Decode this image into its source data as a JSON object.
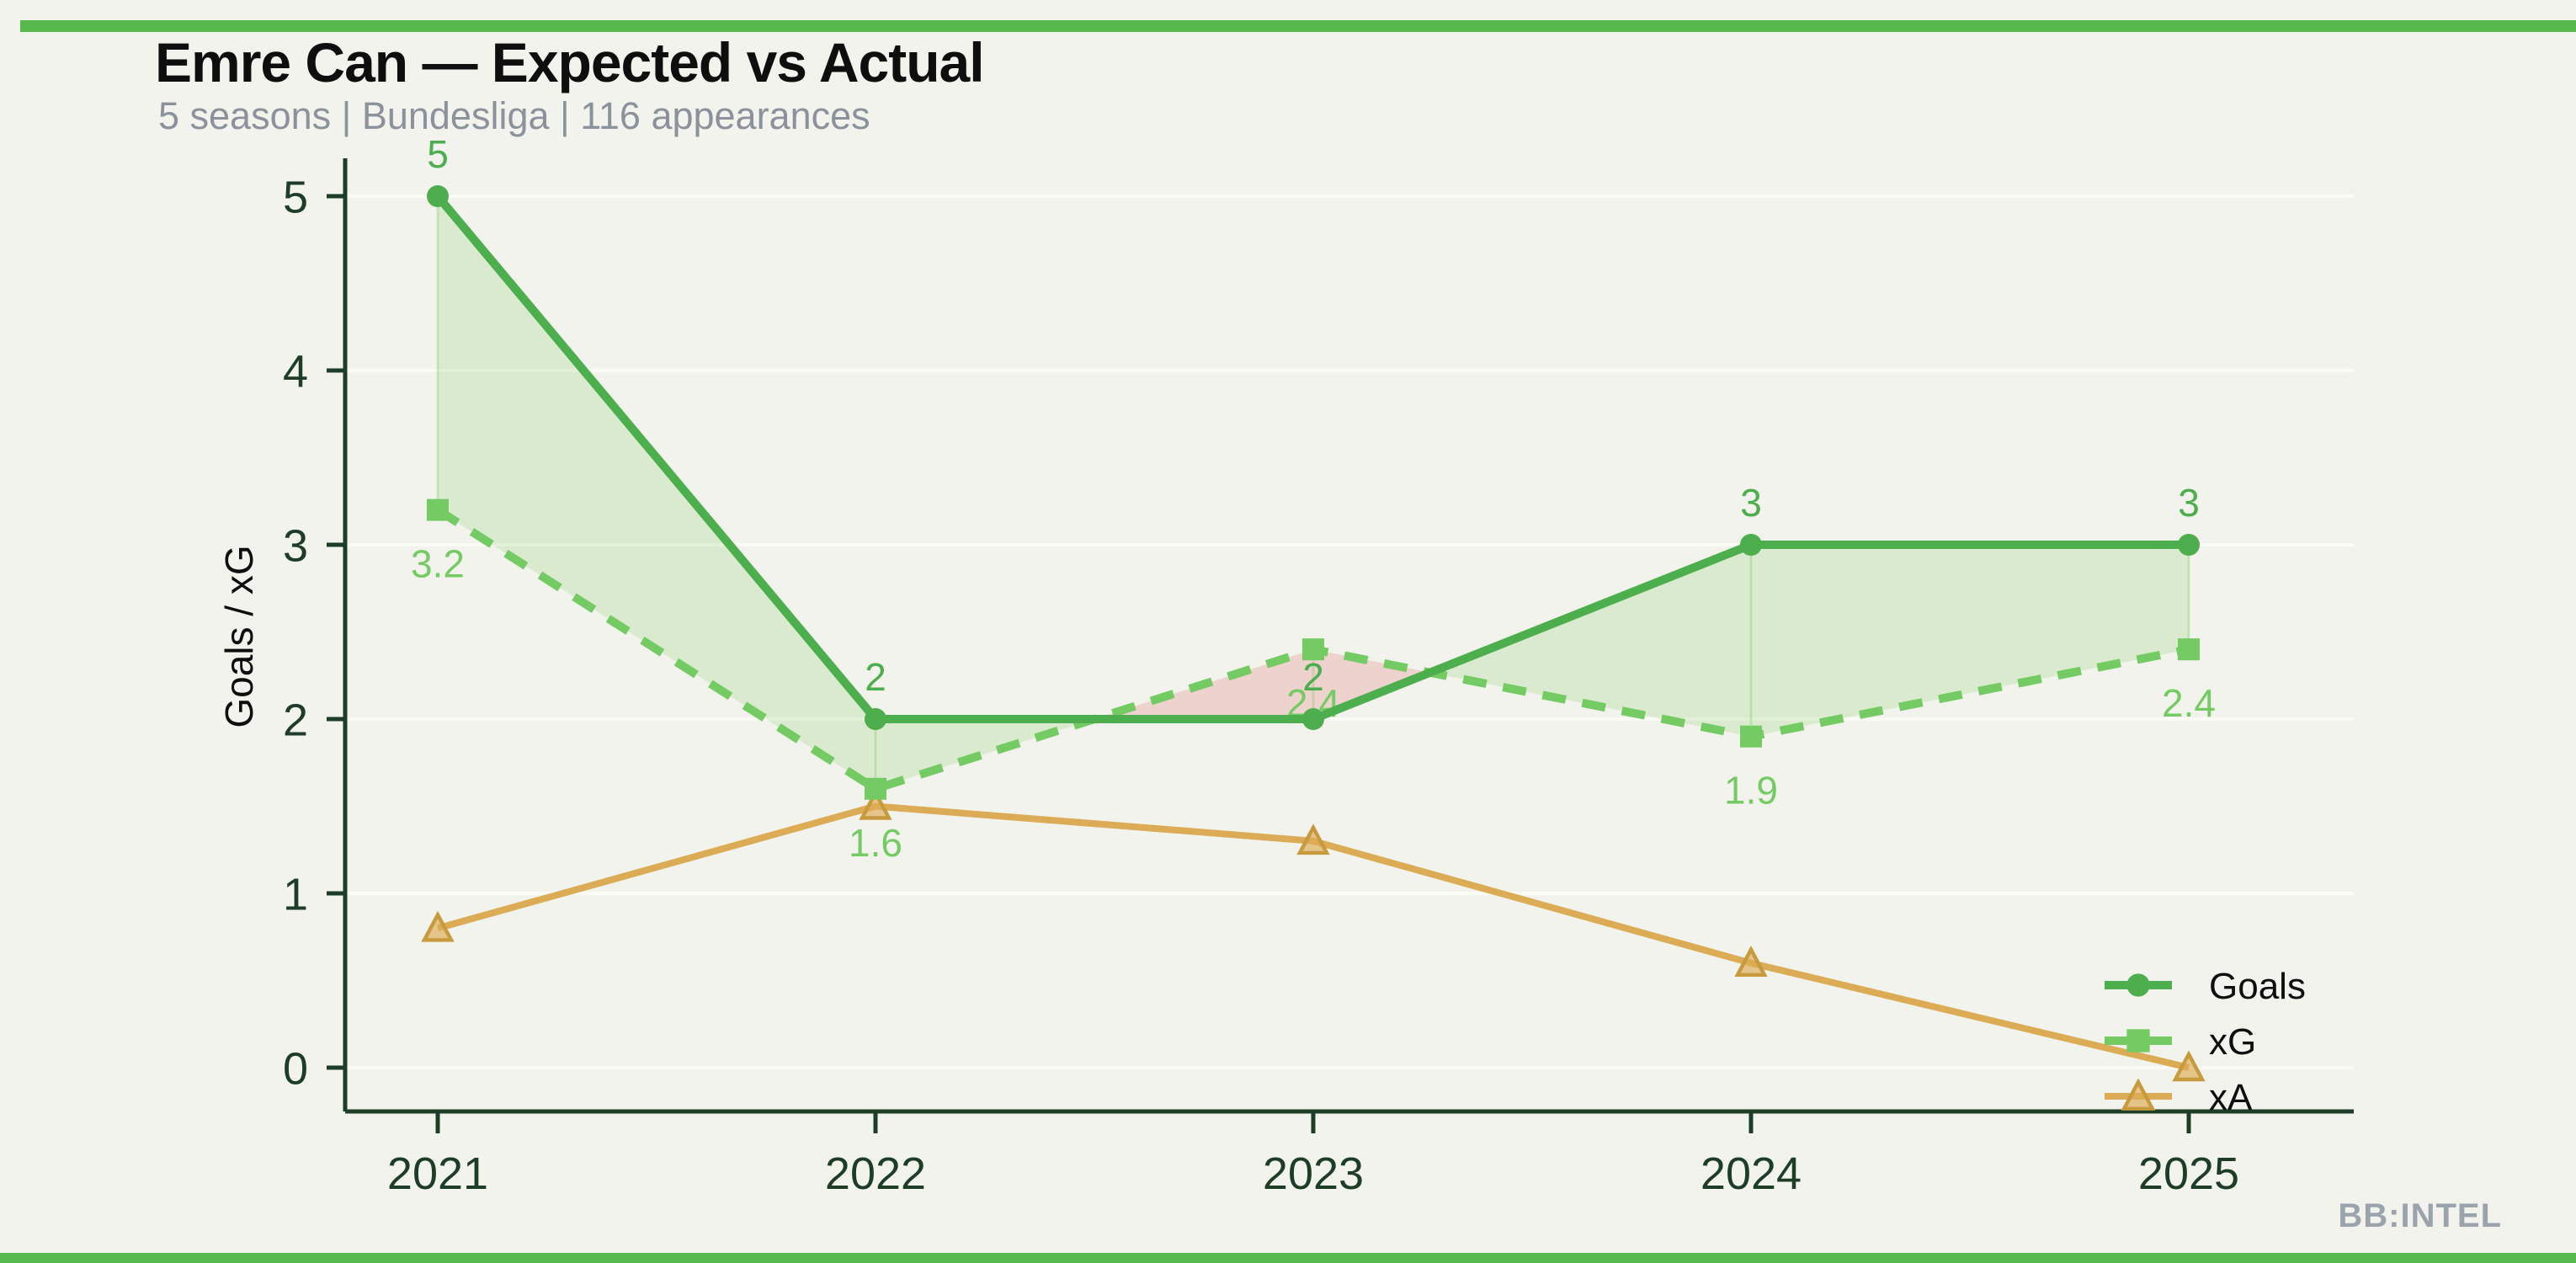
{
  "page": {
    "background": "#f2f3ec",
    "accent_bar_color": "#57b84c",
    "watermark": "BB:INTEL",
    "watermark_color": "#9ba3ac"
  },
  "header": {
    "title": "Emre Can — Expected vs Actual",
    "subtitle": "5 seasons | Bundesliga | 116 appearances"
  },
  "chart_data": {
    "type": "line",
    "title": "Emre Can — Expected vs Actual",
    "x": [
      2021,
      2022,
      2023,
      2024,
      2025
    ],
    "series": [
      {
        "name": "Goals",
        "values": [
          5,
          2,
          2,
          3,
          3
        ],
        "labels": [
          "5",
          "2",
          "2",
          "3",
          "3"
        ],
        "color": "#4cae4c",
        "marker": "circle",
        "style": "solid",
        "label_side": "above"
      },
      {
        "name": "xG",
        "values": [
          3.2,
          1.6,
          2.4,
          1.9,
          2.4
        ],
        "labels": [
          "3.2",
          "1.6",
          "2.4",
          "1.9",
          "2.4"
        ],
        "color": "#74cb63",
        "marker": "square",
        "style": "dashed",
        "label_side": "below"
      },
      {
        "name": "xA",
        "values": [
          0.8,
          1.5,
          1.3,
          0.6,
          0.0
        ],
        "labels": [],
        "color": "#dcab55",
        "marker": "triangle",
        "style": "solid",
        "label_side": "none"
      }
    ],
    "fill_between": {
      "series_a": "Goals",
      "series_b": "xG",
      "above_color": "rgba(124, 198, 96, 0.20)",
      "below_color": "rgba(224, 112, 112, 0.25)"
    },
    "ylabel": "Goals / xG",
    "yticks": [
      0,
      1,
      2,
      3,
      4,
      5
    ],
    "ylim": [
      0,
      5.5
    ],
    "grid": true,
    "legend": [
      "Goals",
      "xG",
      "xA"
    ],
    "legend_position": "lower right",
    "axis_color": "#1e3d27",
    "text_color": "#0e0e0e"
  }
}
